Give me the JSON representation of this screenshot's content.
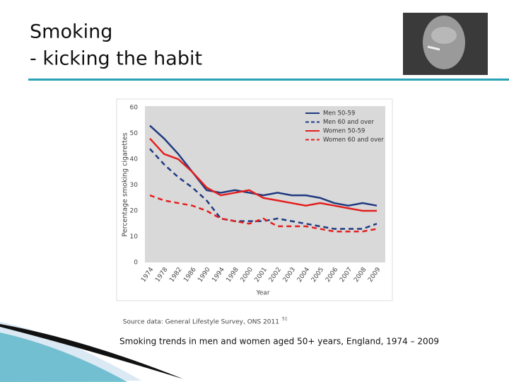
{
  "slide": {
    "title_lines": [
      "Smoking",
      "- kicking the habit"
    ],
    "source": "Source data: General Lifestyle Survey, ONS 2011",
    "source_ref": "51",
    "caption": "Smoking trends in men and women aged 50+ years, England, 1974 – 2009"
  },
  "chart_data": {
    "type": "line",
    "xlabel": "Year",
    "ylabel": "Percentage smoking cigarettes",
    "categories": [
      "1974",
      "1978",
      "1982",
      "1986",
      "1990",
      "1994",
      "1998",
      "2000",
      "2001",
      "2002",
      "2003",
      "2004",
      "2005",
      "2006",
      "2007",
      "2008",
      "2009"
    ],
    "series": [
      {
        "name": "Men 50-59",
        "color": "#1f3a80",
        "dashed": false,
        "values": [
          53,
          48,
          42,
          35,
          28,
          27,
          28,
          27,
          26,
          27,
          26,
          26,
          25,
          23,
          22,
          23,
          22
        ]
      },
      {
        "name": "Men 60 and over",
        "color": "#1f3a80",
        "dashed": true,
        "values": [
          44,
          38,
          33,
          29,
          24,
          17,
          16,
          16,
          16,
          17,
          16,
          15,
          14,
          13,
          13,
          13,
          15
        ]
      },
      {
        "name": "Women 50-59",
        "color": "#e41e1e",
        "dashed": false,
        "values": [
          48,
          42,
          40,
          35,
          29,
          26,
          27,
          28,
          25,
          24,
          23,
          22,
          23,
          22,
          21,
          20,
          20
        ]
      },
      {
        "name": "Women 60 and over",
        "color": "#e41e1e",
        "dashed": true,
        "values": [
          26,
          24,
          23,
          22,
          20,
          17,
          16,
          15,
          17,
          14,
          14,
          14,
          13,
          12,
          12,
          12,
          13
        ]
      }
    ],
    "ylim": [
      0,
      60
    ],
    "yticks": [
      0,
      10,
      20,
      30,
      40,
      50,
      60
    ],
    "grid": false,
    "legend": "top-right"
  }
}
